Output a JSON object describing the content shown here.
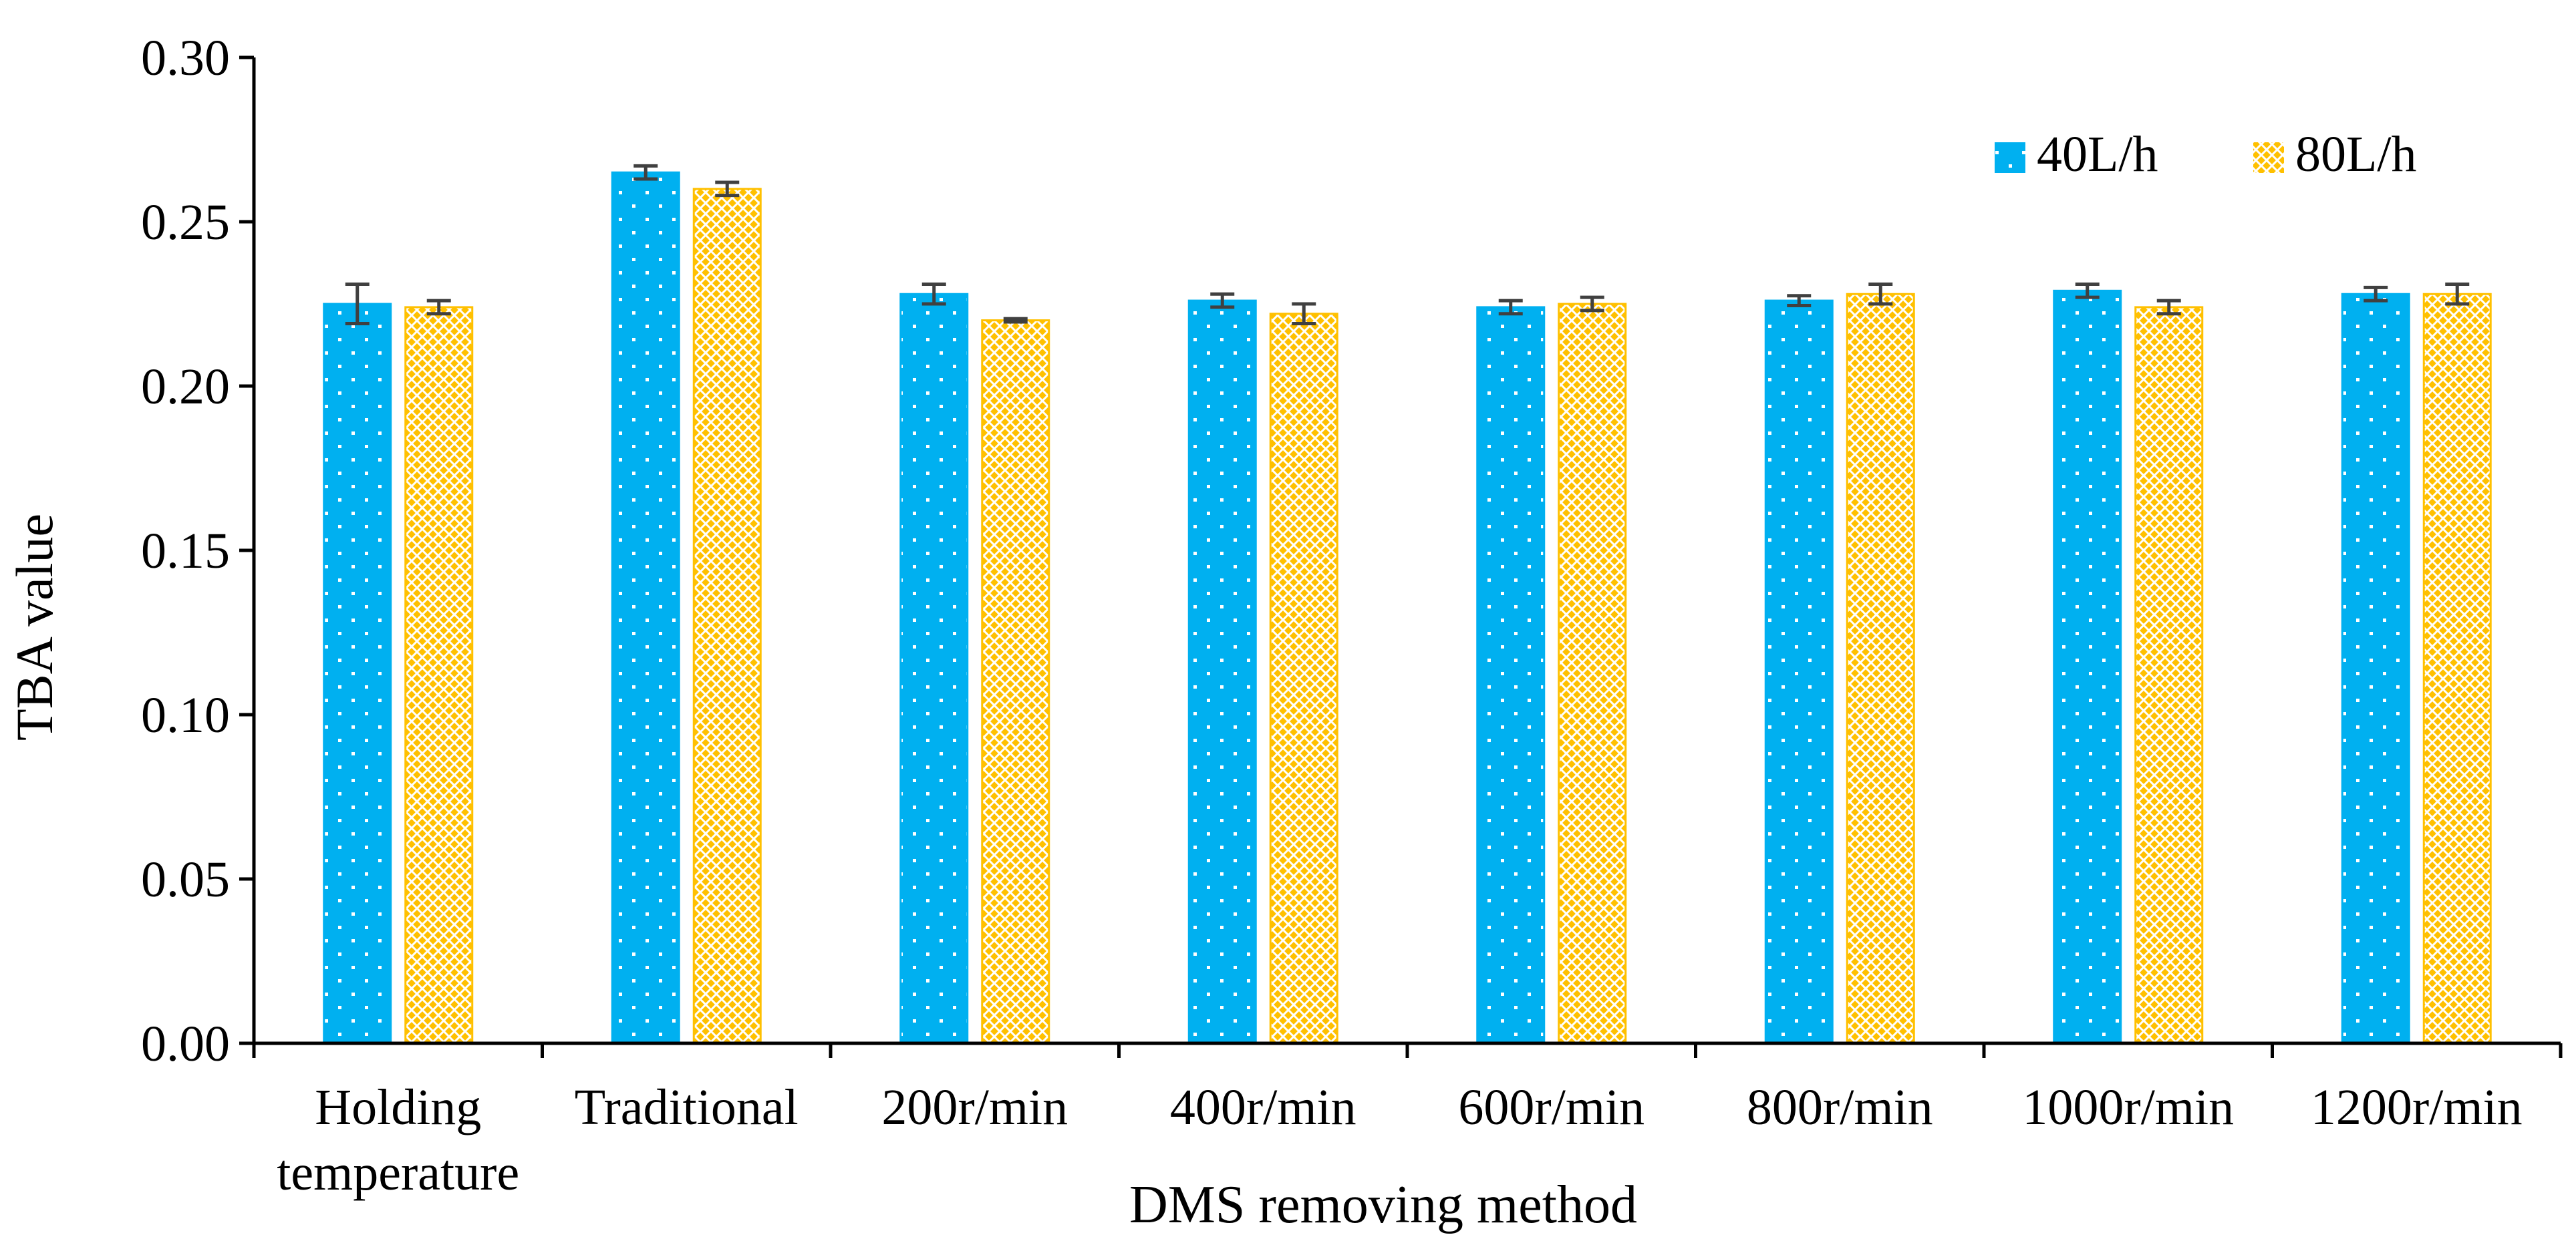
{
  "chart_data": {
    "type": "bar",
    "title": "",
    "xlabel": "DMS removing method",
    "ylabel": "TBA value",
    "categories": [
      [
        "Holding",
        "temperature"
      ],
      [
        "Traditional"
      ],
      [
        "200r/min"
      ],
      [
        "400r/min"
      ],
      [
        "600r/min"
      ],
      [
        "800r/min"
      ],
      [
        "1000r/min"
      ],
      [
        "1200r/min"
      ]
    ],
    "ylim": [
      0,
      0.3
    ],
    "yticks": [
      "0.00",
      "0.05",
      "0.10",
      "0.15",
      "0.20",
      "0.25",
      "0.30"
    ],
    "grid": false,
    "legend_position": "top-right",
    "series": [
      {
        "name": "40L/h",
        "color": "#00B0F0",
        "pattern": "dots",
        "values": [
          0.225,
          0.265,
          0.228,
          0.226,
          0.224,
          0.226,
          0.229,
          0.228
        ],
        "errors": [
          0.006,
          0.002,
          0.003,
          0.002,
          0.002,
          0.0015,
          0.002,
          0.002
        ]
      },
      {
        "name": "80L/h",
        "color": "#FFC000",
        "pattern": "crosshatch",
        "values": [
          0.224,
          0.26,
          0.22,
          0.222,
          0.225,
          0.228,
          0.224,
          0.228
        ],
        "errors": [
          0.002,
          0.002,
          0.0005,
          0.003,
          0.002,
          0.003,
          0.002,
          0.003
        ]
      }
    ]
  }
}
